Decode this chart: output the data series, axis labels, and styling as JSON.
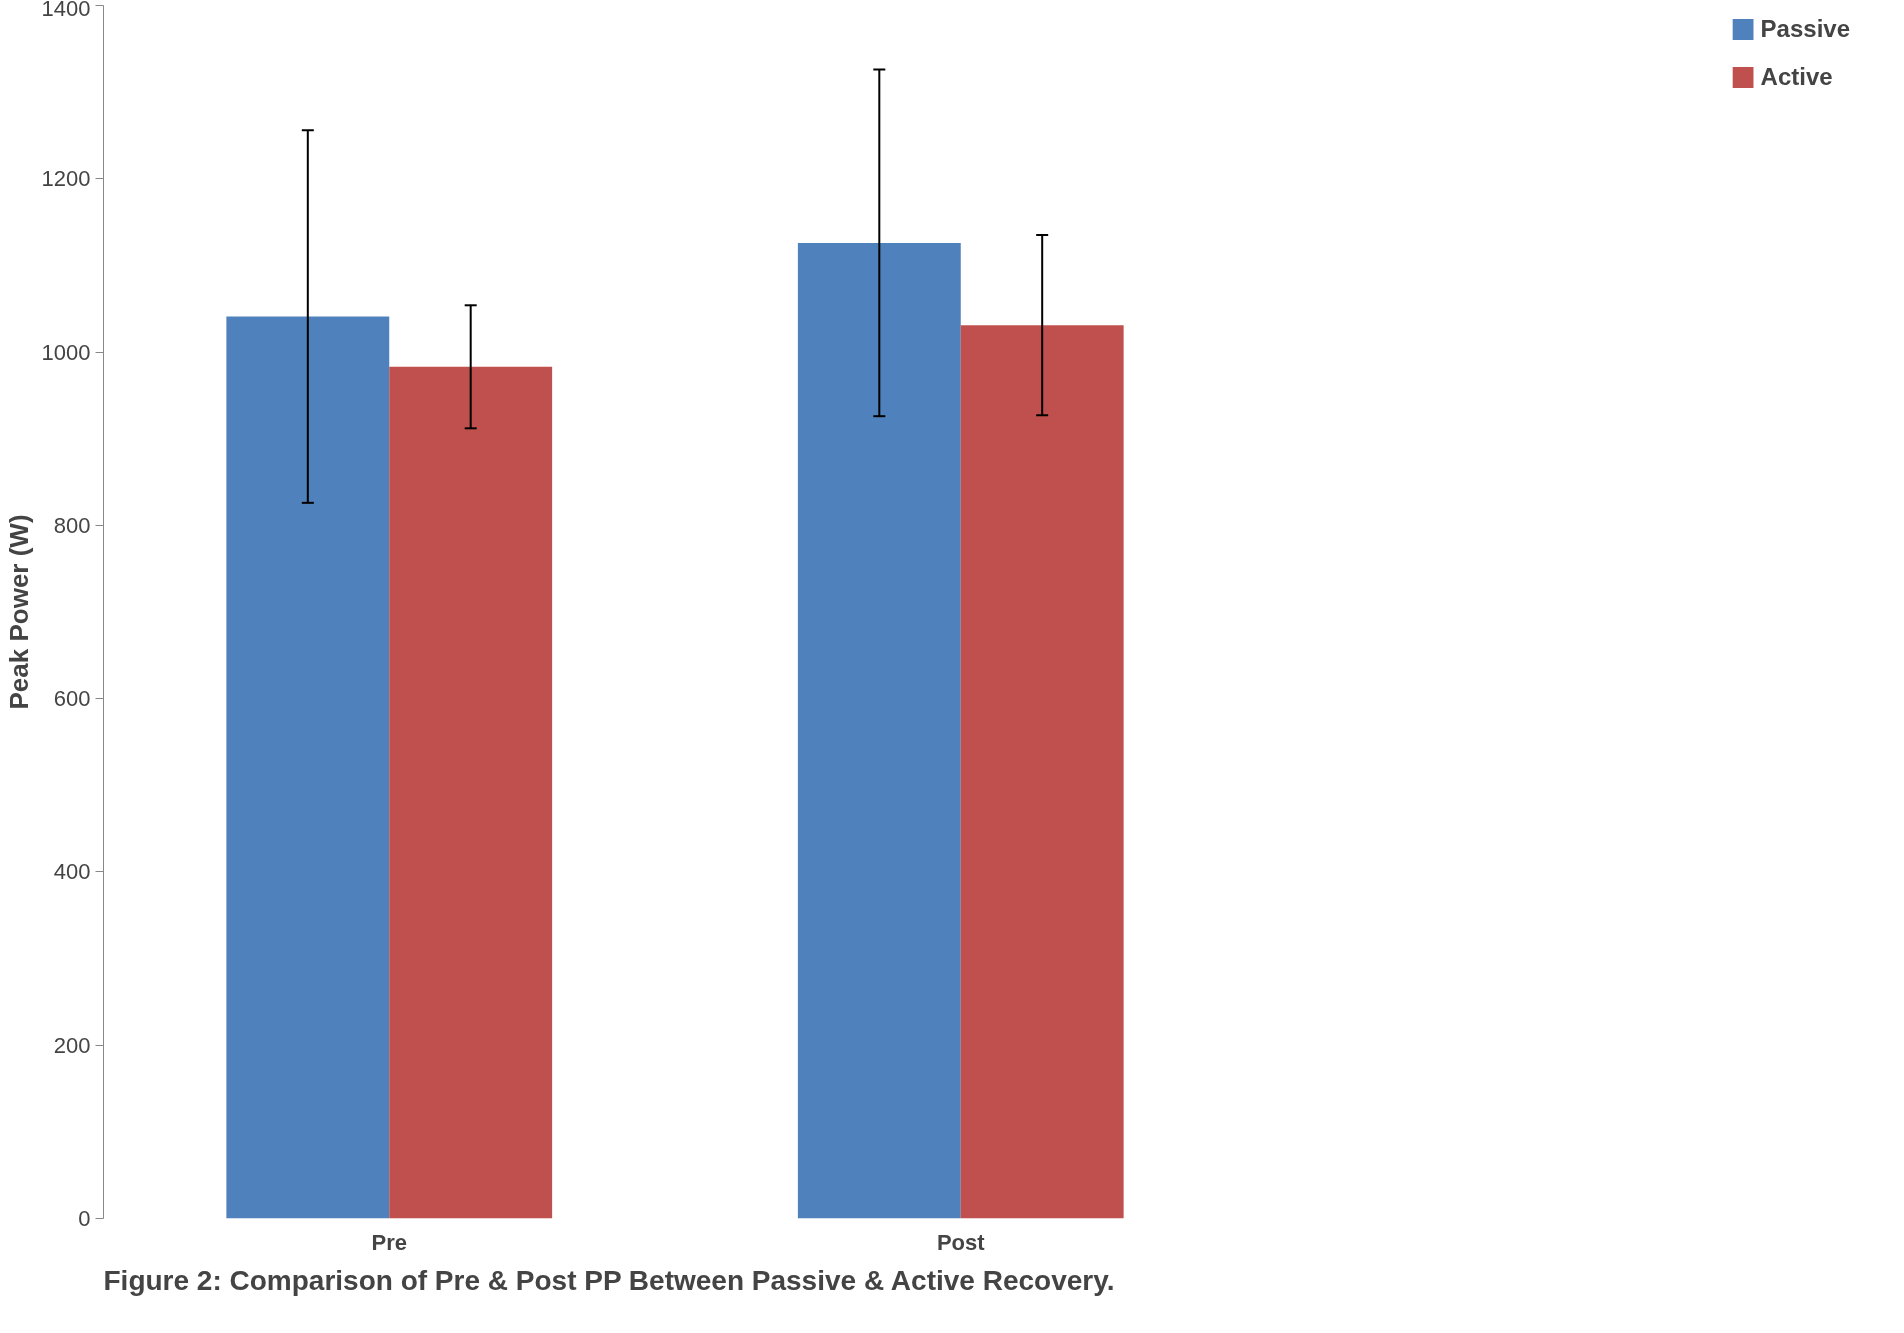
{
  "chart_data": {
    "type": "bar",
    "ylabel": "Peak Power (W)",
    "categories": [
      "Pre",
      "Post"
    ],
    "series": [
      {
        "name": "Passive",
        "color": "#4f81bd",
        "values": [
          1041,
          1126
        ],
        "errors": [
          215,
          200
        ]
      },
      {
        "name": "Active",
        "color": "#c0504d",
        "values": [
          983,
          1031
        ],
        "errors": [
          71,
          104
        ]
      }
    ],
    "ylim": [
      0,
      1400
    ],
    "yticks": [
      0,
      200,
      400,
      600,
      800,
      1000,
      1200,
      1400
    ],
    "grid": false,
    "legend": "right",
    "annotations": [
      "Figure 2: Comparison of Pre & Post PP Between Passive & Active Recovery."
    ]
  }
}
